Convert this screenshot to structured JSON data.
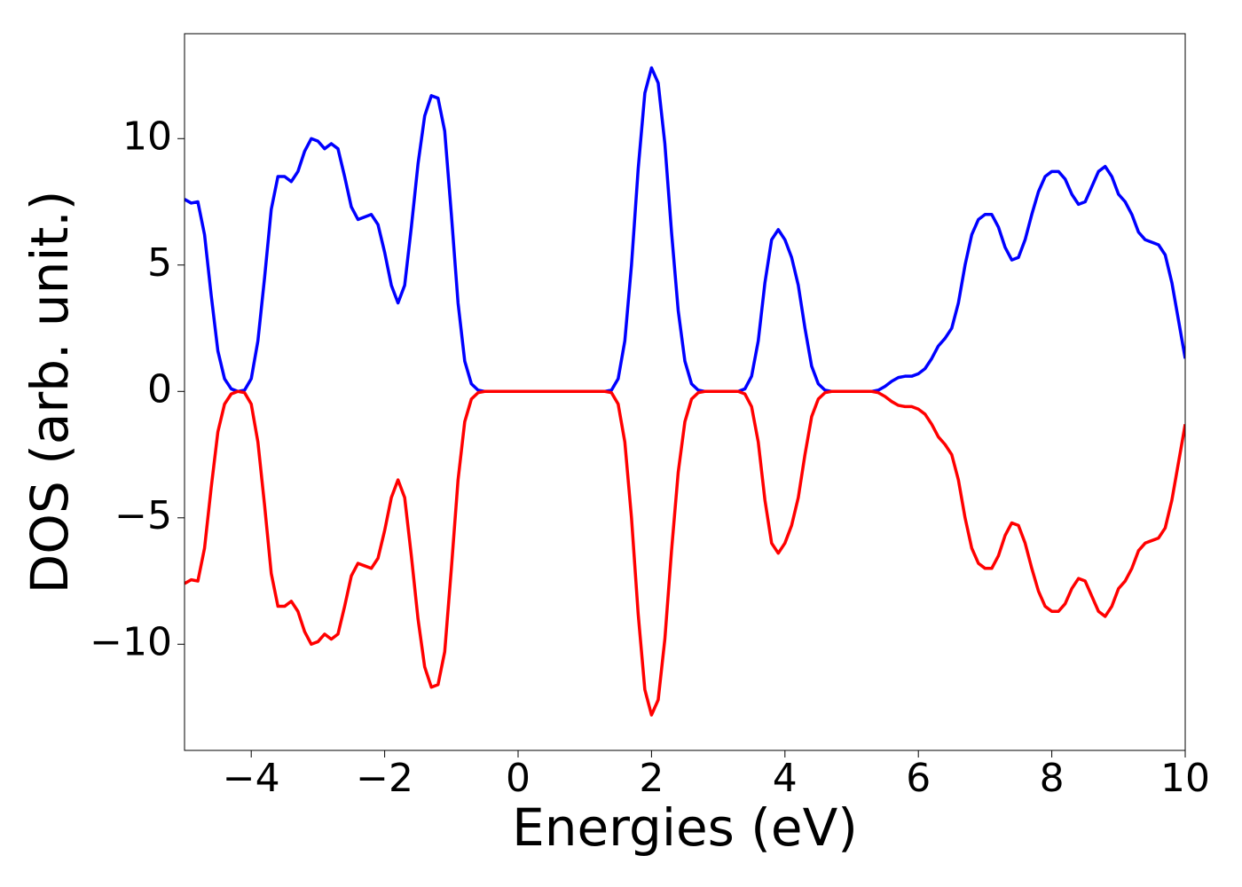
{
  "chart_data": {
    "type": "line",
    "xlabel": "Energies (eV)",
    "ylabel": "DOS (arb. unit.)",
    "x": [
      -5.0,
      -4.9,
      -4.8,
      -4.7,
      -4.6,
      -4.5,
      -4.4,
      -4.3,
      -4.2,
      -4.1,
      -4.0,
      -3.9,
      -3.8,
      -3.7,
      -3.6,
      -3.5,
      -3.4,
      -3.3,
      -3.2,
      -3.1,
      -3.0,
      -2.9,
      -2.8,
      -2.7,
      -2.6,
      -2.5,
      -2.4,
      -2.3,
      -2.2,
      -2.1,
      -2.0,
      -1.9,
      -1.8,
      -1.7,
      -1.6,
      -1.5,
      -1.4,
      -1.3,
      -1.2,
      -1.1,
      -1.0,
      -0.9,
      -0.8,
      -0.7,
      -0.6,
      -0.5,
      -0.4,
      -0.3,
      -0.2,
      -0.1,
      0.0,
      0.1,
      0.2,
      0.3,
      0.4,
      0.5,
      0.6,
      0.7,
      0.8,
      0.9,
      1.0,
      1.1,
      1.2,
      1.3,
      1.4,
      1.5,
      1.6,
      1.7,
      1.8,
      1.9,
      2.0,
      2.1,
      2.2,
      2.3,
      2.4,
      2.5,
      2.6,
      2.7,
      2.8,
      2.9,
      3.0,
      3.1,
      3.2,
      3.3,
      3.4,
      3.5,
      3.6,
      3.7,
      3.8,
      3.9,
      4.0,
      4.1,
      4.2,
      4.3,
      4.4,
      4.5,
      4.6,
      4.7,
      4.8,
      4.9,
      5.0,
      5.1,
      5.2,
      5.3,
      5.4,
      5.5,
      5.6,
      5.7,
      5.8,
      5.9,
      6.0,
      6.1,
      6.2,
      6.3,
      6.4,
      6.5,
      6.6,
      6.7,
      6.8,
      6.9,
      7.0,
      7.1,
      7.2,
      7.3,
      7.4,
      7.5,
      7.6,
      7.7,
      7.8,
      7.9,
      8.0,
      8.1,
      8.2,
      8.3,
      8.4,
      8.5,
      8.6,
      8.7,
      8.8,
      8.9,
      9.0,
      9.1,
      9.2,
      9.3,
      9.4,
      9.5,
      9.6,
      9.7,
      9.8,
      9.9,
      10.0
    ],
    "series": [
      {
        "color": "#0000ff",
        "values": [
          7.6,
          7.45,
          7.5,
          6.2,
          3.8,
          1.6,
          0.5,
          0.1,
          0,
          0.05,
          0.5,
          2.0,
          4.5,
          7.2,
          8.5,
          8.5,
          8.3,
          8.7,
          9.5,
          10.0,
          9.9,
          9.6,
          9.8,
          9.6,
          8.5,
          7.3,
          6.8,
          6.9,
          7.0,
          6.6,
          5.5,
          4.2,
          3.5,
          4.2,
          6.5,
          9.0,
          10.9,
          11.7,
          11.6,
          10.3,
          7.0,
          3.5,
          1.2,
          0.3,
          0.05,
          0,
          0,
          0,
          0,
          0,
          0,
          0,
          0,
          0,
          0,
          0,
          0,
          0,
          0,
          0,
          0,
          0,
          0,
          0,
          0.05,
          0.5,
          2.0,
          5.0,
          8.8,
          11.8,
          12.8,
          12.2,
          9.8,
          6.3,
          3.2,
          1.2,
          0.3,
          0.05,
          0,
          0,
          0,
          0,
          0,
          0,
          0.1,
          0.6,
          2.0,
          4.3,
          6.0,
          6.4,
          6.0,
          5.3,
          4.2,
          2.5,
          1.0,
          0.3,
          0.05,
          0,
          0,
          0,
          0,
          0,
          0,
          0,
          0.05,
          0.2,
          0.4,
          0.55,
          0.6,
          0.6,
          0.7,
          0.9,
          1.3,
          1.8,
          2.1,
          2.5,
          3.5,
          5.0,
          6.2,
          6.8,
          7.0,
          7.0,
          6.5,
          5.7,
          5.2,
          5.3,
          6.0,
          7.0,
          7.9,
          8.5,
          8.7,
          8.7,
          8.4,
          7.8,
          7.4,
          7.5,
          8.1,
          8.7,
          8.9,
          8.5,
          7.8,
          7.5,
          7.0,
          6.3,
          6.0,
          5.9,
          5.8,
          5.4,
          4.3,
          2.8,
          1.3
        ]
      },
      {
        "color": "#ff0000",
        "values": [
          -7.6,
          -7.45,
          -7.5,
          -6.2,
          -3.8,
          -1.6,
          -0.5,
          -0.1,
          0,
          -0.05,
          -0.5,
          -2.0,
          -4.5,
          -7.2,
          -8.5,
          -8.5,
          -8.3,
          -8.7,
          -9.5,
          -10.0,
          -9.9,
          -9.6,
          -9.8,
          -9.6,
          -8.5,
          -7.3,
          -6.8,
          -6.9,
          -7.0,
          -6.6,
          -5.5,
          -4.2,
          -3.5,
          -4.2,
          -6.5,
          -9.0,
          -10.9,
          -11.7,
          -11.6,
          -10.3,
          -7.0,
          -3.5,
          -1.2,
          -0.3,
          -0.05,
          0,
          0,
          0,
          0,
          0,
          0,
          0,
          0,
          0,
          0,
          0,
          0,
          0,
          0,
          0,
          0,
          0,
          0,
          0,
          -0.05,
          -0.5,
          -2.0,
          -5.0,
          -8.8,
          -11.8,
          -12.8,
          -12.2,
          -9.8,
          -6.3,
          -3.2,
          -1.2,
          -0.3,
          -0.05,
          0,
          0,
          0,
          0,
          0,
          0,
          -0.1,
          -0.6,
          -2.0,
          -4.3,
          -6.0,
          -6.4,
          -6.0,
          -5.3,
          -4.2,
          -2.5,
          -1.0,
          -0.3,
          -0.05,
          0,
          0,
          0,
          0,
          0,
          0,
          0,
          -0.05,
          -0.2,
          -0.4,
          -0.55,
          -0.6,
          -0.6,
          -0.7,
          -0.9,
          -1.3,
          -1.8,
          -2.1,
          -2.5,
          -3.5,
          -5.0,
          -6.2,
          -6.8,
          -7.0,
          -7.0,
          -6.5,
          -5.7,
          -5.2,
          -5.3,
          -6.0,
          -7.0,
          -7.9,
          -8.5,
          -8.7,
          -8.7,
          -8.4,
          -7.8,
          -7.4,
          -7.5,
          -8.1,
          -8.7,
          -8.9,
          -8.5,
          -7.8,
          -7.5,
          -7.0,
          -6.3,
          -6.0,
          -5.9,
          -5.8,
          -5.4,
          -4.3,
          -2.8,
          -1.3
        ]
      }
    ],
    "xlim": [
      -5,
      10
    ],
    "xticks": [
      {
        "value": -4,
        "label": "−4"
      },
      {
        "value": -2,
        "label": "−2"
      },
      0,
      2,
      4,
      6,
      8,
      10
    ],
    "ylim": [
      -14.2,
      14.15
    ],
    "yticks": [
      {
        "value": -10,
        "label": "−10"
      },
      {
        "value": -5,
        "label": "−5"
      },
      0,
      5,
      10
    ],
    "grid": false
  }
}
